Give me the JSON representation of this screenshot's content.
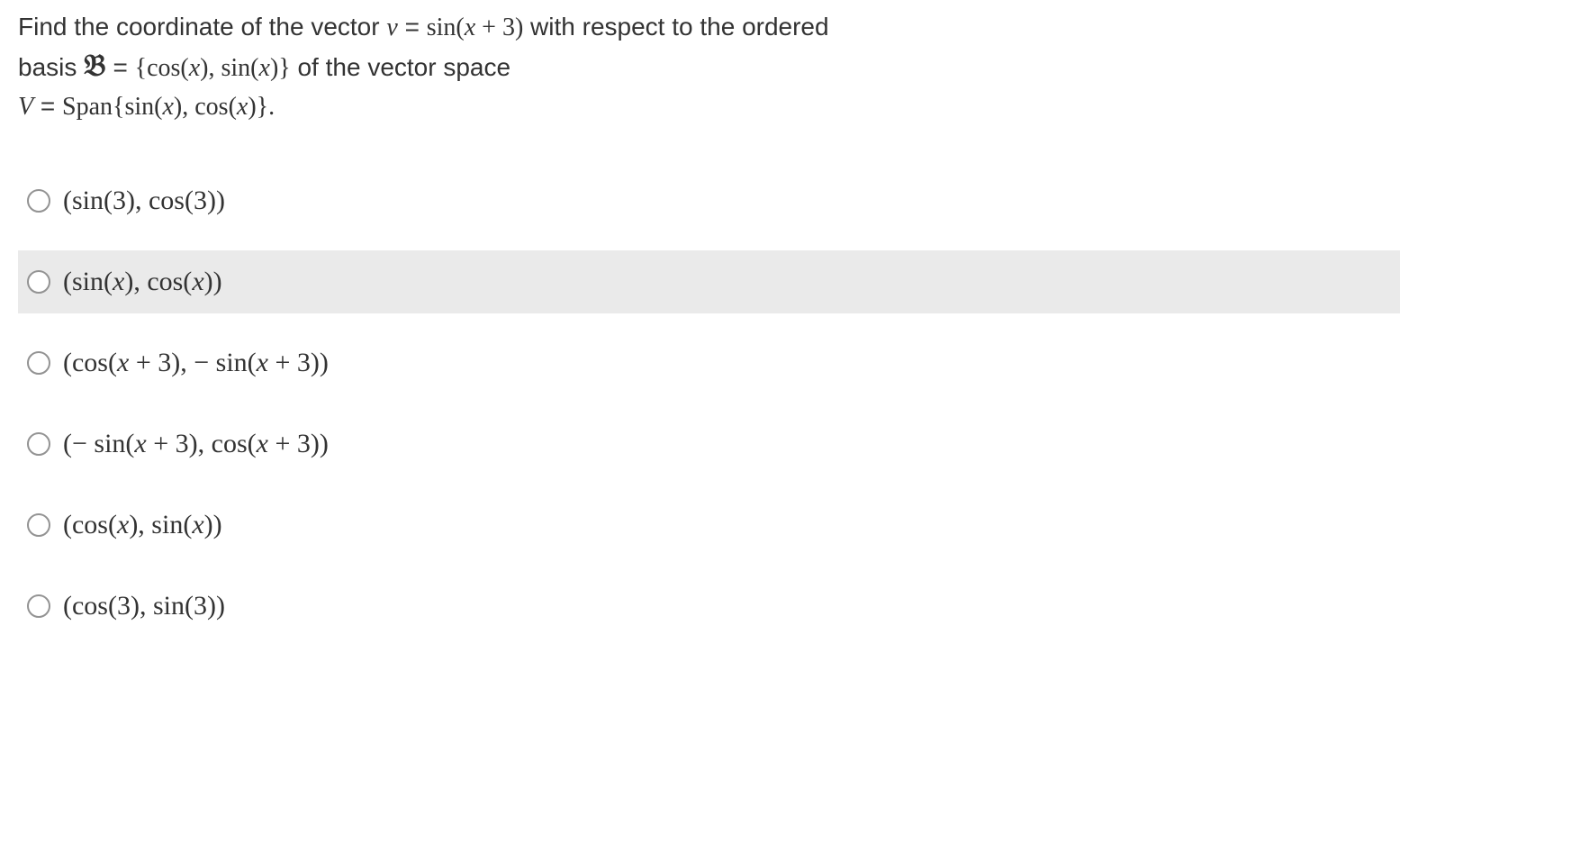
{
  "question": {
    "part1": "Find the coordinate of the vector ",
    "vector_v": "v",
    "equals1": " = ",
    "sin_expr": "sin(x + 3)",
    "part2": " with respect to the ordered",
    "part3": "basis ",
    "basis_symbol": "𝔅",
    "equals2": " = ",
    "basis_set": "{cos(x), sin(x)}",
    "part4": " of the vector space",
    "part5_v": "V",
    "equals3": " = ",
    "span_expr": "Span{sin(x), cos(x)}.",
    "text_color": "#333333",
    "background_color": "#ffffff"
  },
  "options": [
    {
      "label": "(sin(3), cos(3))",
      "highlighted": false
    },
    {
      "label": "(sin(x), cos(x))",
      "highlighted": true
    },
    {
      "label": "(cos(x + 3), − sin(x + 3))",
      "highlighted": false
    },
    {
      "label": "(− sin(x + 3), cos(x + 3))",
      "highlighted": false
    },
    {
      "label": "(cos(x), sin(x))",
      "highlighted": false
    },
    {
      "label": "(cos(3), sin(3))",
      "highlighted": false
    }
  ],
  "styling": {
    "highlighted_bg": "#eaeaea",
    "radio_border": "#939393",
    "font_size_question": 28,
    "font_size_option": 30
  }
}
